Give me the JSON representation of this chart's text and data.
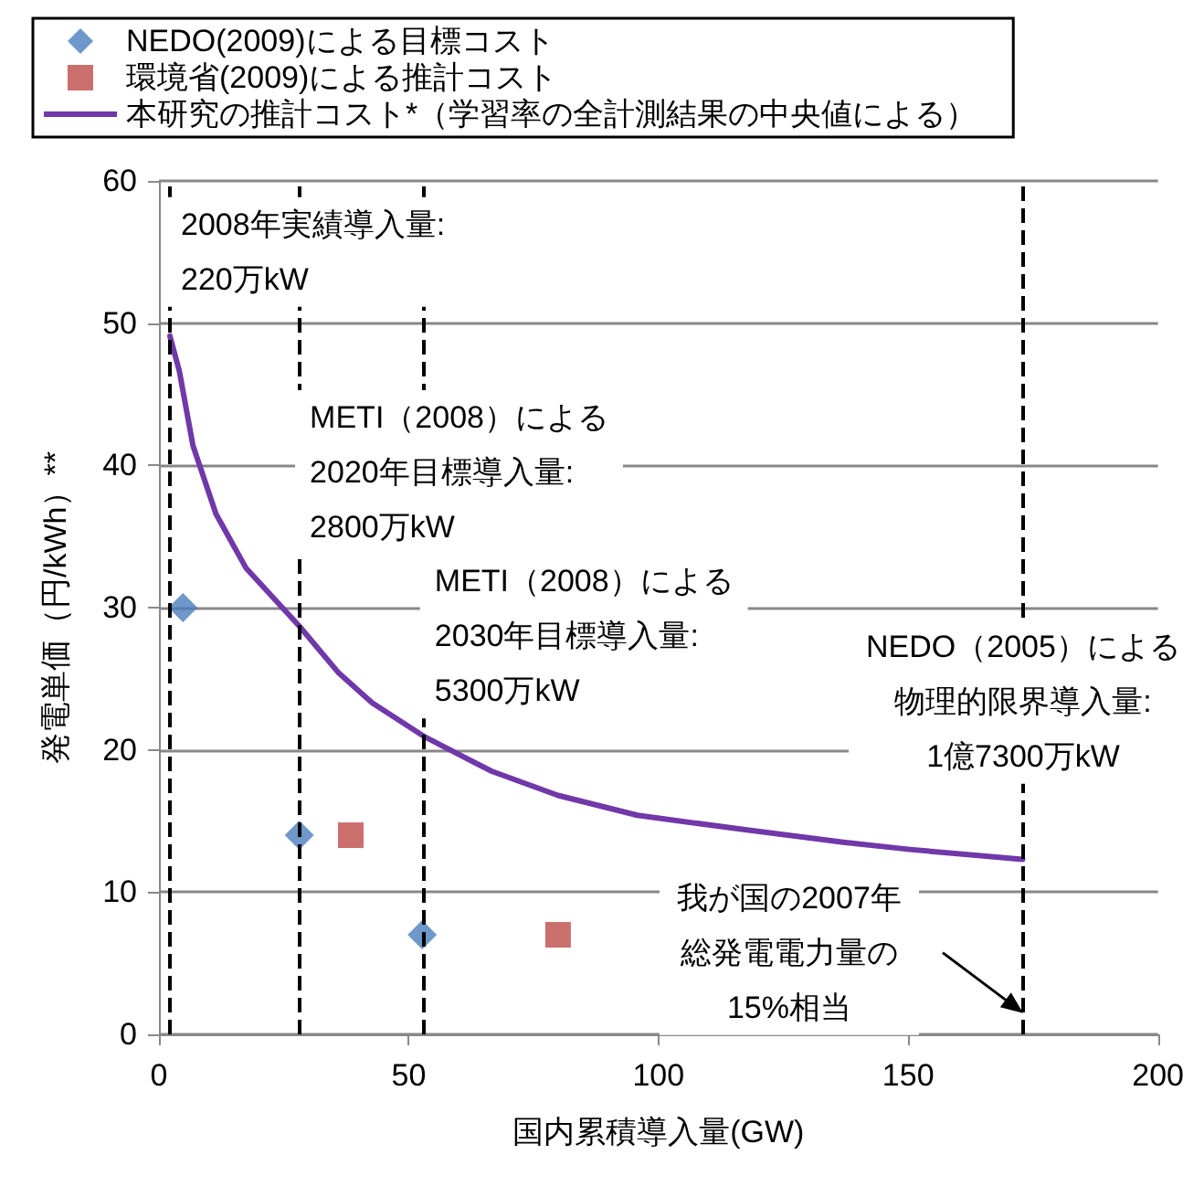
{
  "chart_data": {
    "type": "line",
    "xlabel": "国内累積導入量(GW)",
    "ylabel": "発電単価（円/kWh）**",
    "xlim": [
      0,
      200
    ],
    "xticks": [
      0,
      50,
      100,
      150,
      200
    ],
    "ylim": [
      0,
      60
    ],
    "yticks": [
      0,
      10,
      20,
      30,
      40,
      50,
      60
    ],
    "grid": "y",
    "legend": "top left",
    "series": [
      {
        "name": "NEDO(2009)による目標コスト",
        "type": "scatter",
        "marker": "diamond",
        "color": "#4a7ebb",
        "x": [
          4.8,
          28.1,
          52.7
        ],
        "values": [
          30.0,
          14.0,
          7.0
        ]
      },
      {
        "name": "環境省(2009)による推計コスト",
        "type": "scatter",
        "marker": "square",
        "color": "#be4b48",
        "x": [
          38.4,
          79.9
        ],
        "values": [
          14.0,
          7.0
        ]
      },
      {
        "name": "本研究の推計コスト*（学習率の全計測結果の中央値による）",
        "marker": "none",
        "color": "#7038a8",
        "x": [
          2.2,
          4.1,
          6.8,
          11.4,
          17.4,
          28.1,
          36.0,
          42.7,
          53.3,
          66.6,
          79.9,
          95.8,
          117,
          137,
          150.3,
          172.9
        ],
        "values": [
          49.1,
          46.6,
          41.4,
          36.6,
          32.8,
          28.7,
          25.4,
          23.3,
          20.9,
          18.5,
          16.8,
          15.4,
          14.4,
          13.5,
          13.0,
          12.3
        ]
      }
    ],
    "ref_lines": [
      {
        "axis": "x",
        "value": 2.2,
        "color": "#000000",
        "line_style": "dashed"
      },
      {
        "axis": "x",
        "value": 28,
        "color": "#000000",
        "line_style": "dashed"
      },
      {
        "axis": "x",
        "value": 53,
        "color": "#000000",
        "line_style": "dashed"
      },
      {
        "axis": "x",
        "value": 173,
        "color": "#000000",
        "line_style": "dashed"
      }
    ],
    "annotations": [
      {
        "text": "2008年実績導入量:\n220万kW",
        "x": 2.2,
        "y": 55
      },
      {
        "text": "METI（2008）による\n2020年目標導入量:\n2800万kW",
        "x": 28,
        "y": 39.5
      },
      {
        "text": "METI（2008）による\n2030年目標導入量:\n5300万kW",
        "x": 53,
        "y": 28
      },
      {
        "text": "NEDO（2005）による物理的限界導入量:\n1億7300万kW",
        "x": 173,
        "y": 23.4
      },
      "我が国の2007年総発電電力量の15%相当"
    ]
  }
}
